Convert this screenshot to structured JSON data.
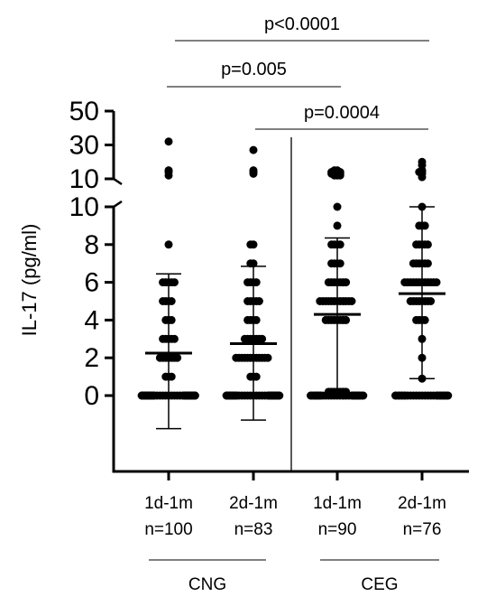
{
  "chart_data": {
    "type": "scatter",
    "ylabel": "IL-17 (pg/ml)",
    "y_axis_lower": {
      "ylim": [
        0,
        10
      ],
      "ticks": [
        0,
        2,
        4,
        6,
        8,
        10
      ],
      "tick_labels": [
        "0",
        "2",
        "4",
        "6",
        "8",
        "10"
      ]
    },
    "y_axis_upper": {
      "ylim": [
        10,
        50
      ],
      "ticks": [
        10,
        30,
        50
      ],
      "tick_labels": [
        "10",
        "30",
        "50"
      ]
    },
    "axis_break": true,
    "groups": [
      {
        "name": "CNG",
        "categories": [
          {
            "label_line1": "1d-1m",
            "label_line2": "n=100",
            "mean": 2.25,
            "sd_upper": 6.45,
            "sd_lower": -1.75,
            "points": [
              0,
              0,
              0,
              0,
              0,
              0,
              0,
              0,
              0,
              0,
              0,
              0,
              0,
              0,
              0,
              0,
              0,
              0,
              0,
              0,
              0,
              0,
              0,
              0,
              0,
              0,
              0,
              0,
              0,
              0,
              0,
              0,
              0,
              0,
              0,
              0,
              0,
              0,
              0,
              0,
              0,
              0,
              0,
              0,
              0,
              0,
              0,
              0,
              0,
              0,
              0,
              0,
              0,
              0,
              0,
              0,
              0,
              0,
              0,
              0,
              0,
              0,
              0,
              0,
              1,
              1,
              1,
              2,
              2,
              2,
              2,
              2,
              2,
              2,
              3,
              3,
              3,
              3,
              3,
              4,
              4,
              4,
              5,
              5,
              5,
              5,
              6,
              6,
              6,
              6,
              6,
              8,
              12,
              14,
              15,
              32
            ]
          },
          {
            "label_line1": "2d-1m",
            "label_line2": "n=83",
            "mean": 2.75,
            "sd_upper": 6.85,
            "sd_lower": -1.3,
            "points": [
              0,
              0,
              0,
              0,
              0,
              0,
              0,
              0,
              0,
              0,
              0,
              0,
              0,
              0,
              0,
              0,
              0,
              0,
              0,
              0,
              0,
              0,
              0,
              0,
              0,
              0,
              0,
              0,
              0,
              0,
              0,
              0,
              0,
              0,
              0,
              0,
              0,
              0,
              0,
              0,
              1,
              1,
              1,
              2,
              2,
              2,
              2,
              2,
              2,
              2,
              2,
              2,
              2,
              2,
              2,
              3,
              3,
              3,
              3,
              3,
              3,
              3,
              4,
              4,
              4,
              4,
              5,
              5,
              5,
              5,
              5,
              6,
              6,
              6,
              6,
              7,
              7,
              8,
              8,
              13,
              14,
              15,
              27
            ]
          }
        ]
      },
      {
        "name": "CEG",
        "categories": [
          {
            "label_line1": "1d-1m",
            "label_line2": "n=90",
            "mean": 4.3,
            "sd_upper": 8.35,
            "sd_lower": 0.2,
            "points": [
              0,
              0,
              0,
              0,
              0,
              0,
              0,
              0,
              0,
              0,
              0,
              0,
              0,
              0,
              0,
              0,
              0,
              0,
              0,
              0,
              0,
              0,
              0,
              0,
              0,
              0,
              0,
              0,
              0,
              0,
              0,
              0,
              0,
              0.2,
              0.2,
              0.2,
              0.2,
              0.2,
              0.2,
              0.2,
              4,
              4,
              4,
              4,
              4,
              4,
              4,
              4,
              5,
              5,
              5,
              5,
              5,
              5,
              5,
              5,
              5,
              5,
              5,
              5,
              6,
              6,
              6,
              6,
              6,
              6,
              6,
              7,
              7,
              7,
              7,
              8,
              8,
              8,
              8,
              9,
              10,
              12,
              12,
              12,
              13,
              13,
              13,
              13,
              14,
              14,
              14,
              14,
              15,
              15
            ]
          },
          {
            "label_line1": "2d-1m",
            "label_line2": "n=76",
            "mean": 5.4,
            "sd_upper": 10.0,
            "sd_lower": 0.9,
            "points": [
              0,
              0,
              0,
              0,
              0,
              0,
              0,
              0,
              0,
              0,
              0,
              0,
              0,
              0,
              0,
              0,
              0,
              0,
              0,
              0,
              0,
              0,
              0,
              0,
              0,
              0,
              0,
              0.9,
              2,
              3,
              4,
              4,
              4,
              4,
              5,
              5,
              5,
              5,
              5,
              5,
              5,
              5,
              6,
              6,
              6,
              6,
              6,
              6,
              6,
              6,
              6,
              6,
              6,
              6,
              7,
              7,
              7,
              7,
              7,
              7,
              8,
              8,
              8,
              8,
              8,
              9,
              9,
              9,
              10,
              11,
              13,
              14,
              14,
              15,
              18,
              20
            ]
          }
        ]
      }
    ],
    "annotations": [
      {
        "text": "p<0.0001",
        "from": 0,
        "to": 3
      },
      {
        "text": "p=0.005",
        "from": 0,
        "to": 2
      },
      {
        "text": "p=0.0004",
        "from": 1,
        "to": 3
      }
    ]
  }
}
